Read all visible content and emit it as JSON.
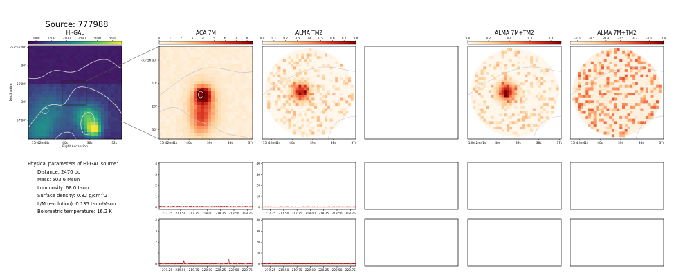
{
  "figure": {
    "title": "Source: 777988"
  },
  "colors": {
    "viridis": [
      "#440154",
      "#3b528b",
      "#21918c",
      "#5ec962",
      "#fde725"
    ],
    "orrd": [
      "#fff7ec",
      "#fdd49e",
      "#fc8d59",
      "#d7301f",
      "#7f0000"
    ],
    "spectrum_line": "#8b0000",
    "zero_line": "#d62728",
    "contour": "#d8d8d8"
  },
  "physical_parameters": {
    "heading": "Physical parameters of Hi-GAL source:",
    "lines": [
      "Distance: 2470 pc",
      "Mass: 503.6 Msun",
      "Luminosity: 68.0 Lsun",
      "Surface density: 0.82 g/cm^2",
      "L/M (evolution): 0.135 Lsun/Msun",
      "Bolometric temperature: 16.2 K"
    ]
  },
  "chart_data": [
    {
      "type": "heatmap",
      "title": "Hi-GAL",
      "colormap": "viridis",
      "colorbar_ticks": [
        "1000",
        "1500",
        "2000",
        "2500",
        "3000",
        "3500"
      ],
      "colorbar_range": [
        750,
        3800
      ],
      "xlabel": "Right Ascension",
      "ylabel": "Declination",
      "x_ticks": [
        "15h42m44s",
        "40s",
        "36s",
        "32s"
      ],
      "y_ticks": [
        "-53°55'00\"",
        "30\"",
        "56'00\"",
        "30\"",
        "57'00\""
      ]
    },
    {
      "type": "heatmap",
      "title": "ACA 7M",
      "colormap": "OrRd",
      "colorbar_ticks": [
        "0",
        "1",
        "2",
        "3",
        "4",
        "5",
        "6",
        "7",
        "8"
      ],
      "colorbar_range": [
        0,
        8.5
      ],
      "x_ticks": [
        "15h42m41s",
        "40s",
        "39s",
        "38s",
        "37s"
      ],
      "y_ticks": [
        "-53°56'00\"",
        "10\"",
        "20\"",
        "30\""
      ]
    },
    {
      "type": "heatmap",
      "title": "ALMA TM2",
      "colormap": "OrRd",
      "colorbar_ticks": [
        "0.0",
        "0.1",
        "0.2",
        "0.3",
        "0.4",
        "0.5",
        "0.6",
        "0.7",
        "0.8"
      ],
      "colorbar_range": [
        0,
        0.8
      ],
      "x_ticks": [
        "15h42m41s",
        "40s",
        "39s",
        "38s",
        "37s"
      ]
    },
    {
      "type": "heatmap",
      "title": "ALMA 7M+TM2",
      "colormap": "OrRd",
      "colorbar_ticks": [
        "0.0",
        "0.2",
        "0.4",
        "0.6",
        "0.8"
      ],
      "colorbar_range": [
        0,
        0.9
      ],
      "x_ticks": [
        "15h42m41s",
        "40s",
        "39s",
        "38s",
        "37s"
      ]
    },
    {
      "type": "heatmap",
      "title": "ALMA 7M+TM2",
      "colormap": "OrRd",
      "colorbar_ticks": [
        "-0.6",
        "-0.5",
        "-0.4",
        "-0.3",
        "-0.2",
        "-0.1",
        "0.0"
      ],
      "colorbar_range": [
        -0.65,
        0.0
      ],
      "x_ticks": [
        "15h42m41s",
        "40s",
        "39s",
        "38s",
        "37s"
      ]
    },
    {
      "type": "line",
      "panel": "spectrum-aca-row1",
      "x_ticks": [
        "217.25",
        "217.50",
        "217.75",
        "218.00",
        "218.25",
        "218.50",
        "218.75"
      ],
      "xlim": [
        217.1,
        218.85
      ],
      "y_ticks": [
        "0",
        "1",
        "2",
        "3",
        "4"
      ],
      "ylim": [
        -0.2,
        4.1
      ],
      "baseline": 0.05,
      "noise": 0.04,
      "spikes": []
    },
    {
      "type": "line",
      "panel": "spectrum-tm2-row1",
      "x_ticks": [
        "217.25",
        "217.50",
        "217.75",
        "218.00",
        "218.25",
        "218.50",
        "218.75"
      ],
      "xlim": [
        217.1,
        218.85
      ],
      "y_ticks": [
        "0",
        "10",
        "20",
        "30",
        "40"
      ],
      "ylim": [
        -2,
        41
      ],
      "baseline": 0.3,
      "noise": 0.25,
      "spikes": []
    },
    {
      "type": "line",
      "panel": "spectrum-aca-row2",
      "x_ticks": [
        "219.25",
        "219.50",
        "219.75",
        "220.00",
        "220.25",
        "220.50",
        "220.75"
      ],
      "xlim": [
        219.1,
        220.85
      ],
      "y_ticks": [
        "0",
        "1",
        "2",
        "3",
        "4"
      ],
      "ylim": [
        -0.2,
        4.1
      ],
      "baseline": 0.05,
      "noise": 0.05,
      "spikes": [
        [
          219.56,
          0.3
        ],
        [
          220.4,
          0.45
        ]
      ]
    },
    {
      "type": "line",
      "panel": "spectrum-tm2-row2",
      "x_ticks": [
        "219.25",
        "219.50",
        "219.75",
        "220.00",
        "220.25",
        "220.50",
        "220.75"
      ],
      "xlim": [
        219.1,
        220.85
      ],
      "y_ticks": [
        "0",
        "10",
        "20",
        "30",
        "40"
      ],
      "ylim": [
        -2,
        41
      ],
      "baseline": 0.3,
      "noise": 0.25,
      "spikes": []
    }
  ]
}
